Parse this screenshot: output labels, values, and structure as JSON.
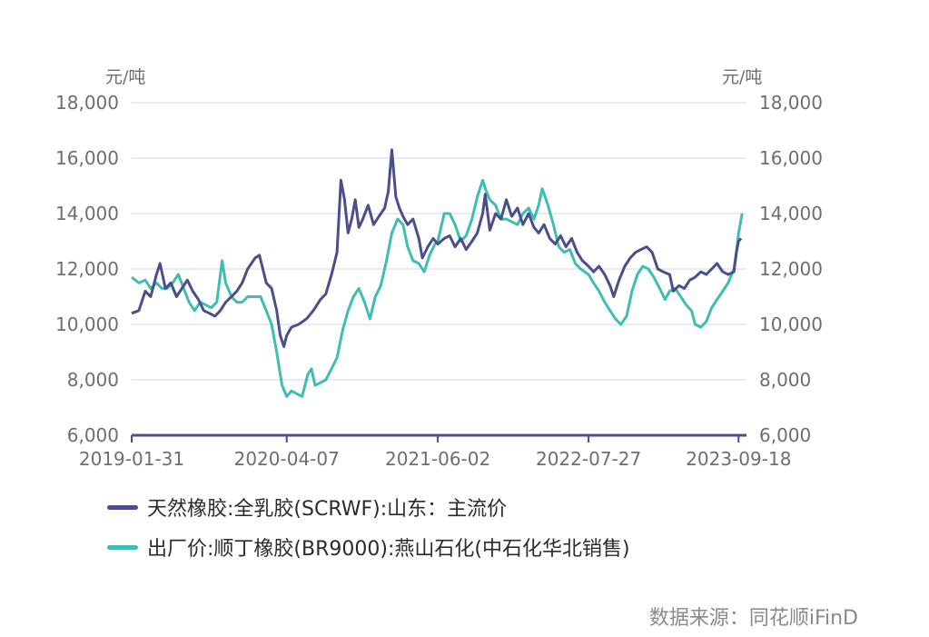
{
  "chart_data": {
    "type": "line",
    "unit_left": "元/吨",
    "unit_right": "元/吨",
    "ylim": [
      6000,
      18000
    ],
    "yticks": [
      "18,000",
      "16,000",
      "14,000",
      "12,000",
      "10,000",
      "8,000",
      "6,000"
    ],
    "ytick_values": [
      18000,
      16000,
      14000,
      12000,
      10000,
      8000,
      6000
    ],
    "xlim": [
      "2019-01-31",
      "2023-10-10"
    ],
    "xticks": [
      "2019-01-31",
      "2020-04-07",
      "2021-06-02",
      "2022-07-27",
      "2023-09-18"
    ],
    "grid": true,
    "legend_position": "bottom-left",
    "series": [
      {
        "name": "天然橡胶:全乳胶(SCRWF):山东：主流价",
        "color": "#4a4e8c",
        "points": [
          [
            "2019-01-31",
            10400
          ],
          [
            "2019-02-20",
            10500
          ],
          [
            "2019-03-10",
            11200
          ],
          [
            "2019-03-25",
            11000
          ],
          [
            "2019-04-10",
            11800
          ],
          [
            "2019-04-20",
            12200
          ],
          [
            "2019-05-05",
            11300
          ],
          [
            "2019-05-20",
            11500
          ],
          [
            "2019-06-05",
            11000
          ],
          [
            "2019-06-20",
            11300
          ],
          [
            "2019-07-05",
            11600
          ],
          [
            "2019-07-20",
            11200
          ],
          [
            "2019-08-05",
            10900
          ],
          [
            "2019-08-20",
            10500
          ],
          [
            "2019-09-05",
            10400
          ],
          [
            "2019-09-20",
            10300
          ],
          [
            "2019-10-05",
            10500
          ],
          [
            "2019-10-20",
            10800
          ],
          [
            "2019-11-05",
            11000
          ],
          [
            "2019-11-20",
            11200
          ],
          [
            "2019-12-05",
            11500
          ],
          [
            "2019-12-20",
            12000
          ],
          [
            "2020-01-10",
            12400
          ],
          [
            "2020-01-22",
            12500
          ],
          [
            "2020-02-10",
            11500
          ],
          [
            "2020-02-25",
            11300
          ],
          [
            "2020-03-10",
            10500
          ],
          [
            "2020-03-20",
            9600
          ],
          [
            "2020-03-30",
            9200
          ],
          [
            "2020-04-07",
            9600
          ],
          [
            "2020-04-20",
            9900
          ],
          [
            "2020-05-10",
            10000
          ],
          [
            "2020-06-01",
            10200
          ],
          [
            "2020-06-20",
            10500
          ],
          [
            "2020-07-10",
            10900
          ],
          [
            "2020-07-25",
            11100
          ],
          [
            "2020-08-10",
            11800
          ],
          [
            "2020-08-25",
            12600
          ],
          [
            "2020-09-05",
            15200
          ],
          [
            "2020-09-15",
            14500
          ],
          [
            "2020-09-25",
            13300
          ],
          [
            "2020-10-05",
            13800
          ],
          [
            "2020-10-15",
            14500
          ],
          [
            "2020-10-25",
            13500
          ],
          [
            "2020-11-05",
            13800
          ],
          [
            "2020-11-20",
            14300
          ],
          [
            "2020-12-05",
            13600
          ],
          [
            "2020-12-20",
            13900
          ],
          [
            "2021-01-05",
            14200
          ],
          [
            "2021-01-15",
            14800
          ],
          [
            "2021-01-25",
            16300
          ],
          [
            "2021-02-05",
            14600
          ],
          [
            "2021-02-15",
            14200
          ],
          [
            "2021-02-25",
            13900
          ],
          [
            "2021-03-10",
            13600
          ],
          [
            "2021-03-25",
            13800
          ],
          [
            "2021-04-10",
            13100
          ],
          [
            "2021-04-20",
            12400
          ],
          [
            "2021-05-05",
            12800
          ],
          [
            "2021-05-20",
            13100
          ],
          [
            "2021-06-02",
            12900
          ],
          [
            "2021-06-20",
            13100
          ],
          [
            "2021-07-05",
            13200
          ],
          [
            "2021-07-20",
            12800
          ],
          [
            "2021-08-05",
            13100
          ],
          [
            "2021-08-20",
            12700
          ],
          [
            "2021-09-05",
            13000
          ],
          [
            "2021-09-20",
            13300
          ],
          [
            "2021-10-05",
            14000
          ],
          [
            "2021-10-12",
            14700
          ],
          [
            "2021-10-25",
            13400
          ],
          [
            "2021-11-10",
            14000
          ],
          [
            "2021-11-25",
            13800
          ],
          [
            "2021-12-10",
            14500
          ],
          [
            "2021-12-25",
            13900
          ],
          [
            "2022-01-10",
            14200
          ],
          [
            "2022-01-25",
            13600
          ],
          [
            "2022-02-10",
            14000
          ],
          [
            "2022-02-25",
            13500
          ],
          [
            "2022-03-10",
            13300
          ],
          [
            "2022-03-25",
            13600
          ],
          [
            "2022-04-10",
            13100
          ],
          [
            "2022-04-25",
            12900
          ],
          [
            "2022-05-10",
            13200
          ],
          [
            "2022-05-25",
            12800
          ],
          [
            "2022-06-10",
            13100
          ],
          [
            "2022-06-25",
            12600
          ],
          [
            "2022-07-10",
            12300
          ],
          [
            "2022-07-27",
            12100
          ],
          [
            "2022-08-10",
            11900
          ],
          [
            "2022-08-25",
            12100
          ],
          [
            "2022-09-10",
            11800
          ],
          [
            "2022-09-25",
            11400
          ],
          [
            "2022-10-05",
            11000
          ],
          [
            "2022-10-20",
            11600
          ],
          [
            "2022-11-05",
            12100
          ],
          [
            "2022-11-20",
            12400
          ],
          [
            "2022-12-05",
            12600
          ],
          [
            "2022-12-20",
            12700
          ],
          [
            "2023-01-05",
            12800
          ],
          [
            "2023-01-20",
            12600
          ],
          [
            "2023-02-05",
            12000
          ],
          [
            "2023-02-20",
            11900
          ],
          [
            "2023-03-10",
            11800
          ],
          [
            "2023-03-20",
            11200
          ],
          [
            "2023-04-05",
            11400
          ],
          [
            "2023-04-20",
            11300
          ],
          [
            "2023-05-05",
            11600
          ],
          [
            "2023-05-20",
            11700
          ],
          [
            "2023-06-05",
            11900
          ],
          [
            "2023-06-20",
            11800
          ],
          [
            "2023-07-05",
            12000
          ],
          [
            "2023-07-20",
            12200
          ],
          [
            "2023-08-05",
            11900
          ],
          [
            "2023-08-20",
            11800
          ],
          [
            "2023-09-05",
            11900
          ],
          [
            "2023-09-12",
            12600
          ],
          [
            "2023-09-18",
            13000
          ],
          [
            "2023-09-25",
            13100
          ]
        ]
      },
      {
        "name": "出厂价:顺丁橡胶(BR9000):燕山石化(中石化华北销售)",
        "color": "#3ebdb0",
        "points": [
          [
            "2019-01-31",
            11700
          ],
          [
            "2019-02-20",
            11500
          ],
          [
            "2019-03-10",
            11600
          ],
          [
            "2019-03-25",
            11300
          ],
          [
            "2019-04-10",
            11500
          ],
          [
            "2019-04-25",
            11300
          ],
          [
            "2019-05-10",
            11300
          ],
          [
            "2019-05-25",
            11500
          ],
          [
            "2019-06-10",
            11800
          ],
          [
            "2019-06-25",
            11300
          ],
          [
            "2019-07-10",
            10800
          ],
          [
            "2019-07-25",
            10500
          ],
          [
            "2019-08-10",
            10800
          ],
          [
            "2019-08-25",
            10700
          ],
          [
            "2019-09-10",
            10600
          ],
          [
            "2019-09-25",
            10800
          ],
          [
            "2019-10-10",
            12300
          ],
          [
            "2019-10-20",
            11500
          ],
          [
            "2019-11-05",
            11000
          ],
          [
            "2019-11-20",
            10800
          ],
          [
            "2019-12-05",
            10800
          ],
          [
            "2019-12-20",
            11000
          ],
          [
            "2020-01-10",
            11000
          ],
          [
            "2020-01-25",
            11000
          ],
          [
            "2020-02-10",
            10500
          ],
          [
            "2020-02-25",
            10000
          ],
          [
            "2020-03-10",
            9000
          ],
          [
            "2020-03-25",
            7800
          ],
          [
            "2020-04-07",
            7400
          ],
          [
            "2020-04-20",
            7600
          ],
          [
            "2020-05-05",
            7500
          ],
          [
            "2020-05-20",
            7400
          ],
          [
            "2020-06-05",
            8200
          ],
          [
            "2020-06-15",
            8400
          ],
          [
            "2020-06-25",
            7800
          ],
          [
            "2020-07-10",
            7900
          ],
          [
            "2020-07-25",
            8000
          ],
          [
            "2020-08-10",
            8400
          ],
          [
            "2020-08-25",
            8800
          ],
          [
            "2020-09-10",
            9800
          ],
          [
            "2020-09-25",
            10500
          ],
          [
            "2020-10-10",
            11000
          ],
          [
            "2020-10-25",
            11300
          ],
          [
            "2020-11-10",
            10800
          ],
          [
            "2020-11-25",
            10200
          ],
          [
            "2020-12-10",
            11000
          ],
          [
            "2020-12-25",
            11400
          ],
          [
            "2021-01-10",
            12300
          ],
          [
            "2021-01-25",
            13300
          ],
          [
            "2021-02-10",
            13800
          ],
          [
            "2021-02-25",
            13600
          ],
          [
            "2021-03-10",
            12800
          ],
          [
            "2021-03-25",
            12300
          ],
          [
            "2021-04-10",
            12200
          ],
          [
            "2021-04-25",
            11900
          ],
          [
            "2021-05-10",
            12500
          ],
          [
            "2021-05-25",
            12900
          ],
          [
            "2021-06-02",
            13000
          ],
          [
            "2021-06-20",
            14000
          ],
          [
            "2021-07-05",
            14000
          ],
          [
            "2021-07-20",
            13600
          ],
          [
            "2021-08-05",
            13000
          ],
          [
            "2021-08-20",
            13200
          ],
          [
            "2021-09-05",
            13800
          ],
          [
            "2021-09-20",
            14600
          ],
          [
            "2021-10-05",
            15200
          ],
          [
            "2021-10-15",
            14800
          ],
          [
            "2021-10-25",
            14500
          ],
          [
            "2021-11-10",
            14300
          ],
          [
            "2021-11-25",
            13800
          ],
          [
            "2021-12-10",
            13800
          ],
          [
            "2021-12-25",
            13700
          ],
          [
            "2022-01-10",
            13600
          ],
          [
            "2022-01-25",
            14000
          ],
          [
            "2022-02-10",
            14200
          ],
          [
            "2022-02-25",
            13800
          ],
          [
            "2022-03-10",
            14300
          ],
          [
            "2022-03-20",
            14900
          ],
          [
            "2022-04-05",
            14300
          ],
          [
            "2022-04-20",
            13600
          ],
          [
            "2022-05-05",
            12800
          ],
          [
            "2022-05-20",
            12600
          ],
          [
            "2022-06-05",
            12700
          ],
          [
            "2022-06-20",
            12200
          ],
          [
            "2022-07-05",
            12000
          ],
          [
            "2022-07-27",
            11800
          ],
          [
            "2022-08-10",
            11500
          ],
          [
            "2022-08-25",
            11200
          ],
          [
            "2022-09-10",
            10800
          ],
          [
            "2022-09-25",
            10500
          ],
          [
            "2022-10-10",
            10200
          ],
          [
            "2022-10-25",
            10000
          ],
          [
            "2022-11-10",
            10300
          ],
          [
            "2022-11-25",
            11200
          ],
          [
            "2022-12-10",
            11800
          ],
          [
            "2022-12-25",
            12100
          ],
          [
            "2023-01-10",
            12000
          ],
          [
            "2023-01-25",
            11700
          ],
          [
            "2023-02-10",
            11300
          ],
          [
            "2023-02-25",
            10900
          ],
          [
            "2023-03-10",
            11200
          ],
          [
            "2023-03-25",
            11300
          ],
          [
            "2023-04-10",
            11000
          ],
          [
            "2023-04-25",
            10700
          ],
          [
            "2023-05-10",
            10500
          ],
          [
            "2023-05-20",
            10000
          ],
          [
            "2023-06-05",
            9900
          ],
          [
            "2023-06-20",
            10100
          ],
          [
            "2023-07-05",
            10600
          ],
          [
            "2023-07-20",
            10900
          ],
          [
            "2023-08-05",
            11200
          ],
          [
            "2023-08-20",
            11500
          ],
          [
            "2023-09-05",
            12000
          ],
          [
            "2023-09-12",
            12600
          ],
          [
            "2023-09-18",
            13300
          ],
          [
            "2023-09-28",
            14000
          ]
        ]
      }
    ]
  },
  "source_text": "数据来源：同花顺iFinD"
}
